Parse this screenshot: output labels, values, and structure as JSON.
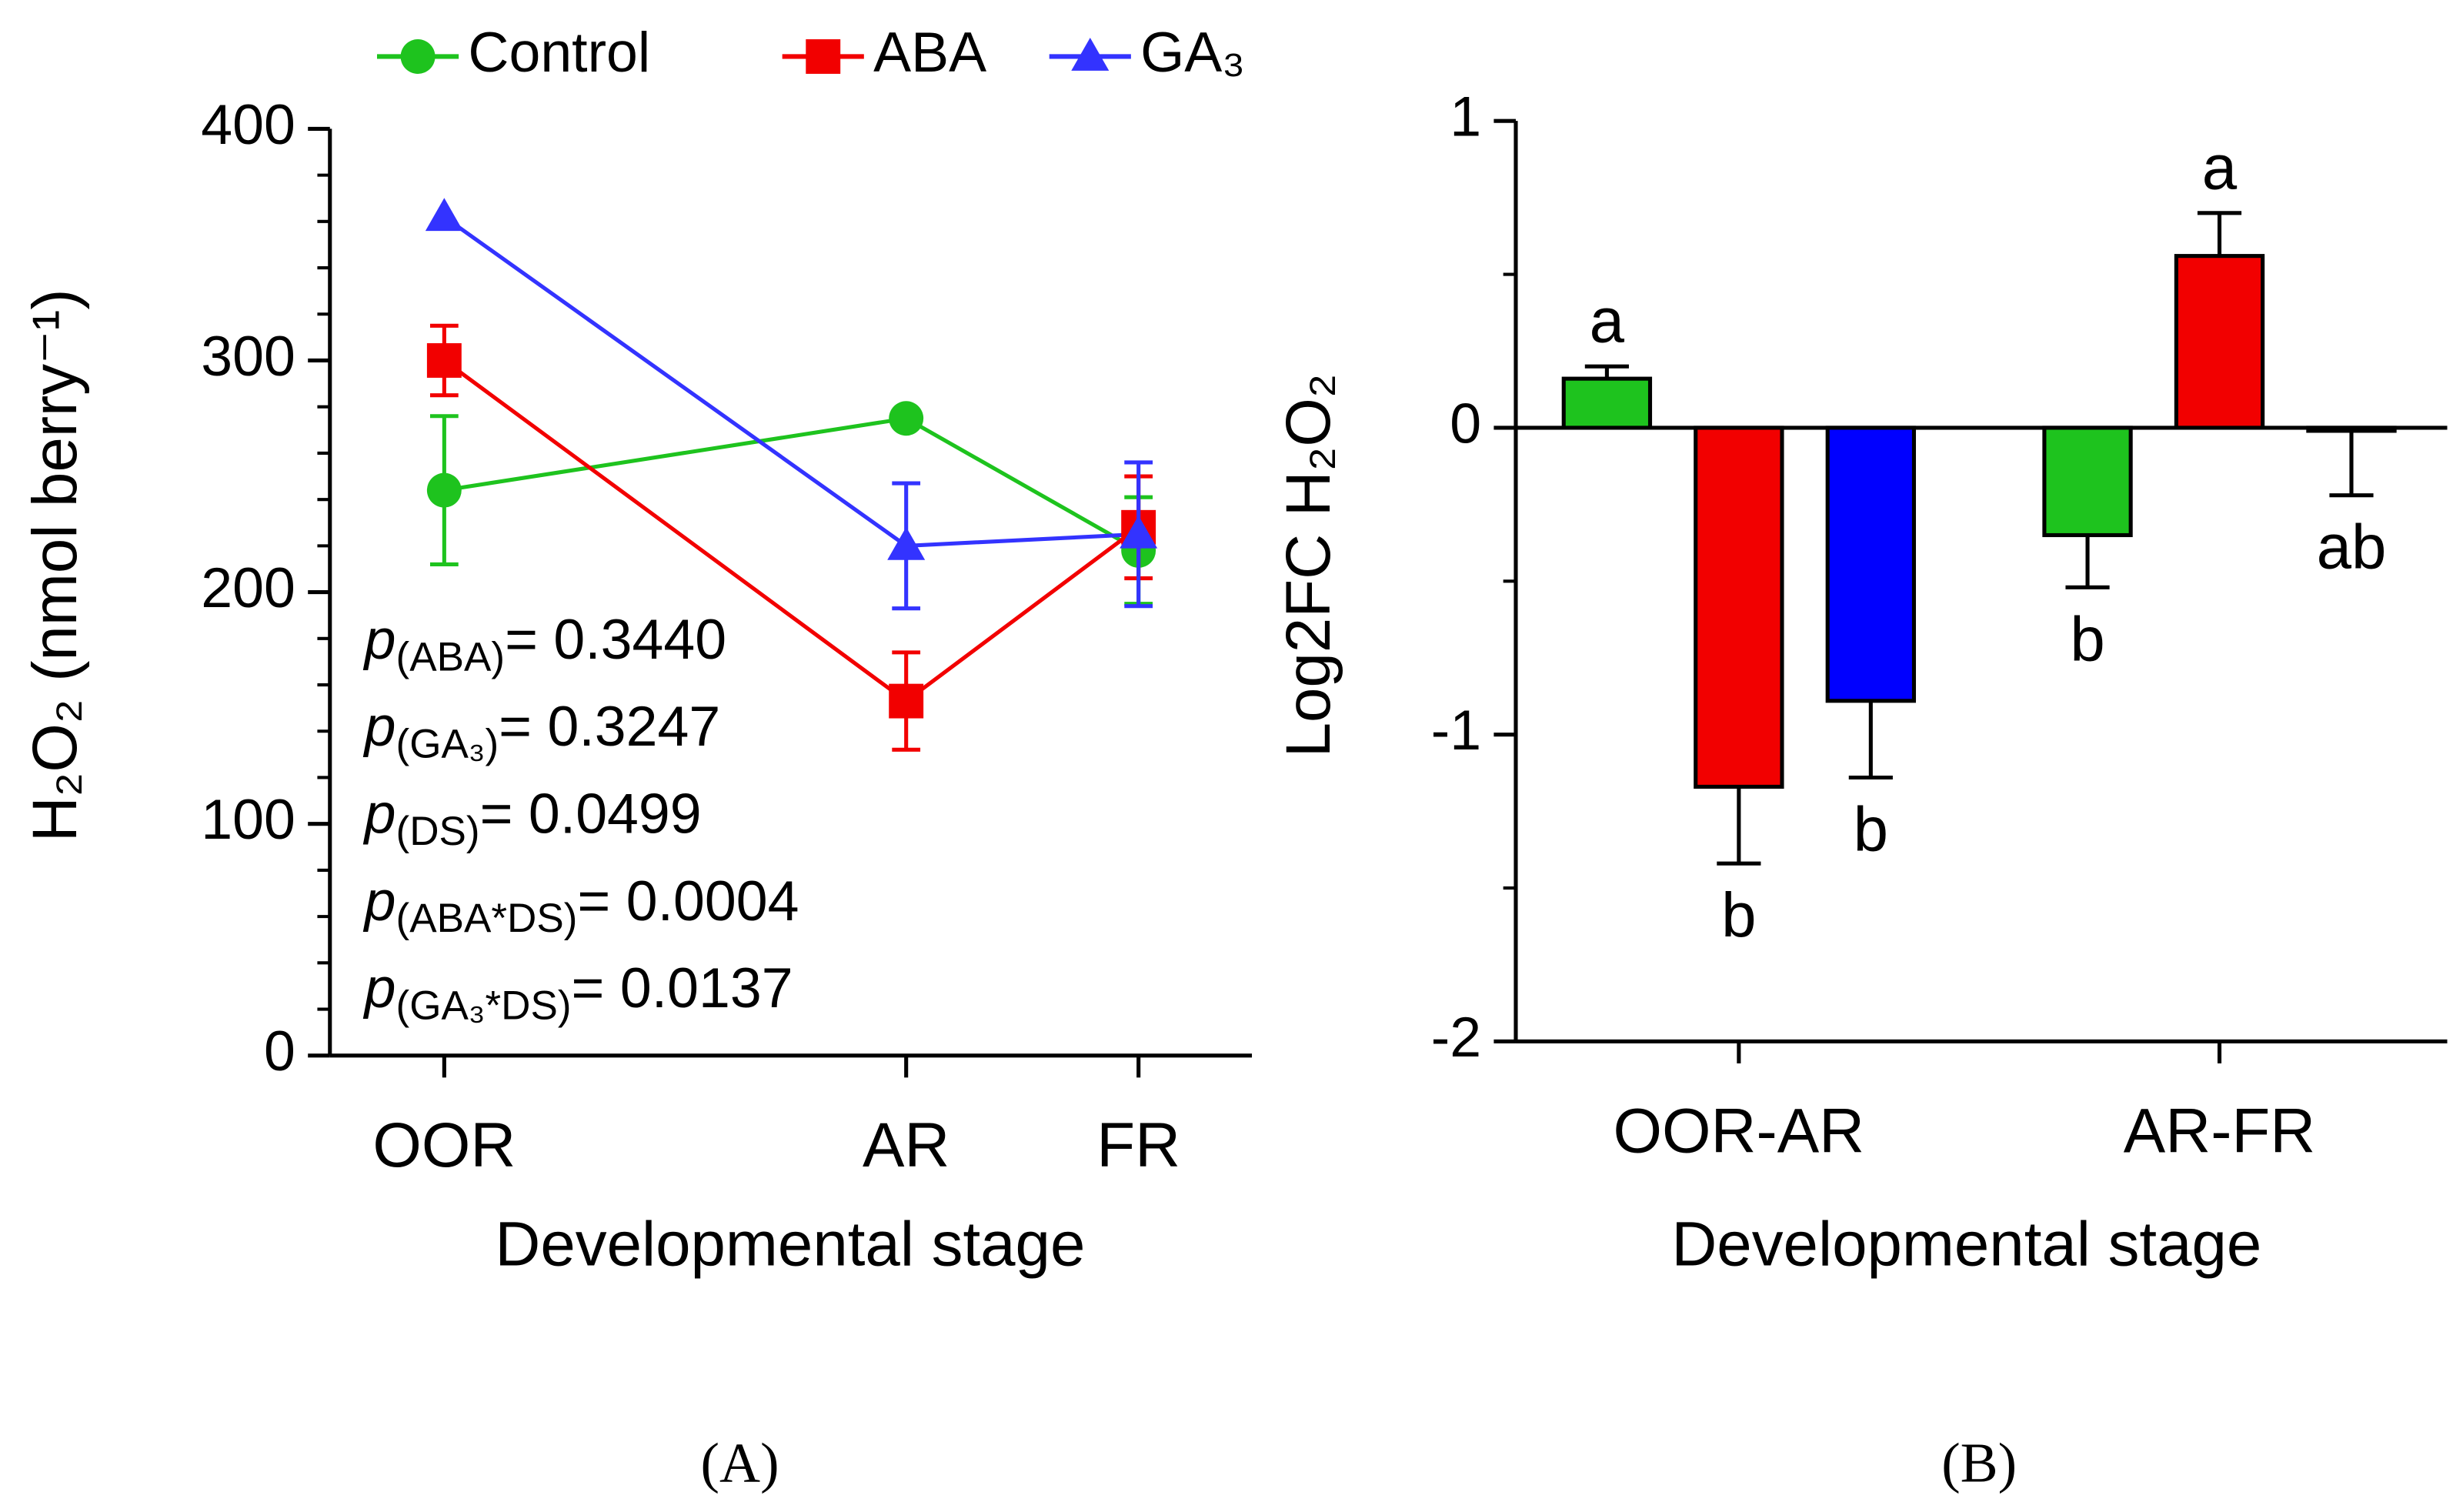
{
  "chart_data": [
    {
      "type": "line",
      "panel_label": "(A)",
      "xlabel": "Developmental stage",
      "ylabel": "H₂O₂ (nmol berry⁻¹)",
      "categories": [
        "OOR",
        "AR",
        "FR"
      ],
      "ylim": [
        0,
        400
      ],
      "yticks": [
        0,
        100,
        200,
        300,
        400
      ],
      "yminorticks": [
        20,
        40,
        60,
        80,
        120,
        140,
        160,
        180,
        220,
        240,
        260,
        280,
        320,
        340,
        360,
        380
      ],
      "series": [
        {
          "name": "Control",
          "color": "#1ec31e",
          "marker": "circle",
          "values": [
            244,
            275,
            218
          ],
          "errors": [
            32,
            0,
            23
          ]
        },
        {
          "name": "ABA",
          "color": "#f20000",
          "marker": "square",
          "values": [
            300,
            153,
            228
          ],
          "errors": [
            15,
            21,
            22
          ]
        },
        {
          "name": "GA₃",
          "color": "#3333ff",
          "marker": "triangle",
          "values": [
            362,
            220,
            225
          ],
          "errors": [
            0,
            27,
            31
          ]
        }
      ],
      "annotations": [
        {
          "symbol": "p",
          "sub": "(ABA)",
          "text": "= 0.3440"
        },
        {
          "symbol": "p",
          "sub": "(GA₃)",
          "text": "= 0.3247"
        },
        {
          "symbol": "p",
          "sub": "(DS)",
          "text": "= 0.0499"
        },
        {
          "symbol": "p",
          "sub": "(ABA*DS)",
          "text": "= 0.0004"
        },
        {
          "symbol": "p",
          "sub": "(GA₃*DS)",
          "text": "= 0.0137"
        }
      ]
    },
    {
      "type": "bar",
      "panel_label": "(B)",
      "xlabel": "Developmental stage",
      "ylabel": "Log2FC H₂O₂",
      "categories": [
        "OOR-AR",
        "AR-FR"
      ],
      "ylim": [
        -2,
        1
      ],
      "yticks": [
        -2,
        -1,
        0,
        1
      ],
      "yminorticks": [
        -1.5,
        -0.5,
        0.5
      ],
      "series": [
        {
          "color": "#1ec31e",
          "values": [
            0.16,
            -0.35
          ],
          "errors": [
            0.04,
            0.17
          ],
          "letters": [
            "a",
            "b"
          ]
        },
        {
          "color": "#f20000",
          "values": [
            -1.17,
            0.56
          ],
          "errors": [
            0.25,
            0.14
          ],
          "letters": [
            "b",
            "a"
          ]
        },
        {
          "color": "#0000ff",
          "values": [
            -0.89,
            -0.01
          ],
          "errors": [
            0.25,
            0.21
          ],
          "letters": [
            "b",
            "ab"
          ]
        }
      ]
    }
  ]
}
